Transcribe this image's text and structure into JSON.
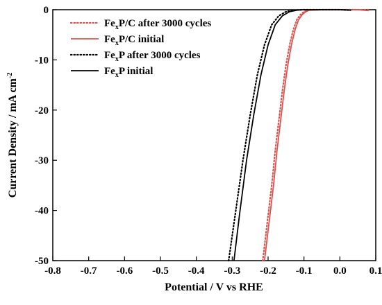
{
  "chart_data": {
    "type": "line",
    "xlabel": "Potential / V vs RHE",
    "ylabel": "Current Density / mA cm",
    "ylabel_sup": "-2",
    "xlim": [
      -0.8,
      0.1
    ],
    "ylim": [
      -50,
      0
    ],
    "x_ticks": [
      -0.8,
      -0.7,
      -0.6,
      -0.5,
      -0.4,
      -0.3,
      -0.2,
      -0.1,
      0.0,
      0.1
    ],
    "x_tick_labels": [
      "-0.8",
      "-0.7",
      "-0.6",
      "-0.5",
      "-0.4",
      "-0.3",
      "-0.2",
      "-0.1",
      "0.0",
      "0.1"
    ],
    "y_ticks": [
      0,
      -10,
      -20,
      -30,
      -40,
      -50
    ],
    "y_tick_labels": [
      "0",
      "-10",
      "-20",
      "-30",
      "-40",
      "-50"
    ],
    "grid": false,
    "legend_position": "top-left",
    "series": [
      {
        "name": "Fe_xP/C after 3000 cycles",
        "legend_main": "Fe",
        "legend_sub": "x",
        "legend_rest": "P/C after 3000 cycles",
        "color": "#d9534f",
        "style": "dotted",
        "points": [
          [
            -0.215,
            -50
          ],
          [
            -0.2,
            -41
          ],
          [
            -0.19,
            -35
          ],
          [
            -0.18,
            -28
          ],
          [
            -0.17,
            -22
          ],
          [
            -0.16,
            -16
          ],
          [
            -0.15,
            -11
          ],
          [
            -0.14,
            -7
          ],
          [
            -0.13,
            -4
          ],
          [
            -0.12,
            -2
          ],
          [
            -0.11,
            -1
          ],
          [
            -0.1,
            -0.4
          ],
          [
            -0.09,
            -0.1
          ],
          [
            -0.05,
            0
          ],
          [
            0.0,
            0
          ],
          [
            0.05,
            0
          ],
          [
            0.08,
            -0.1
          ]
        ]
      },
      {
        "name": "Fe_xP/C initial",
        "legend_main": "Fe",
        "legend_sub": "x",
        "legend_rest": "P/C initial",
        "color": "#d9534f",
        "style": "solid",
        "points": [
          [
            -0.21,
            -50
          ],
          [
            -0.195,
            -41
          ],
          [
            -0.185,
            -35
          ],
          [
            -0.175,
            -28
          ],
          [
            -0.165,
            -22
          ],
          [
            -0.155,
            -16
          ],
          [
            -0.145,
            -11
          ],
          [
            -0.135,
            -7
          ],
          [
            -0.125,
            -4
          ],
          [
            -0.115,
            -2
          ],
          [
            -0.105,
            -1
          ],
          [
            -0.095,
            -0.4
          ],
          [
            -0.085,
            -0.1
          ],
          [
            -0.05,
            0
          ],
          [
            0.0,
            0
          ],
          [
            0.05,
            0
          ],
          [
            0.08,
            -0.2
          ]
        ]
      },
      {
        "name": "Fe_xP after 3000 cycles",
        "legend_main": "Fe",
        "legend_sub": "x",
        "legend_rest": "P after 3000 cycles",
        "color": "#000000",
        "style": "dotted",
        "points": [
          [
            -0.31,
            -50
          ],
          [
            -0.29,
            -40
          ],
          [
            -0.27,
            -30
          ],
          [
            -0.25,
            -21
          ],
          [
            -0.23,
            -13
          ],
          [
            -0.21,
            -7
          ],
          [
            -0.19,
            -3
          ],
          [
            -0.17,
            -1.2
          ],
          [
            -0.15,
            -0.4
          ],
          [
            -0.13,
            -0.1
          ],
          [
            -0.1,
            0
          ],
          [
            -0.05,
            0
          ],
          [
            0.0,
            0
          ],
          [
            0.03,
            -0.1
          ]
        ]
      },
      {
        "name": "Fe_xP initial",
        "legend_main": "Fe",
        "legend_sub": "x",
        "legend_rest": "P initial",
        "color": "#000000",
        "style": "solid",
        "points": [
          [
            -0.295,
            -50
          ],
          [
            -0.28,
            -41
          ],
          [
            -0.26,
            -30
          ],
          [
            -0.24,
            -21
          ],
          [
            -0.22,
            -13
          ],
          [
            -0.2,
            -7
          ],
          [
            -0.18,
            -3
          ],
          [
            -0.16,
            -1.2
          ],
          [
            -0.14,
            -0.4
          ],
          [
            -0.12,
            -0.1
          ],
          [
            -0.1,
            0
          ],
          [
            -0.05,
            0
          ],
          [
            0.0,
            0
          ],
          [
            0.03,
            -0.1
          ]
        ]
      }
    ]
  }
}
